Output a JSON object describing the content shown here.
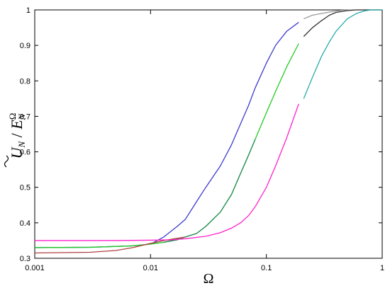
{
  "chart_data": {
    "type": "line",
    "xlabel": "Ω",
    "ylabel_main": "U",
    "ylabel_sub": "N",
    "ylabel_den": "E",
    "ylabel_den_sup": "Ω",
    "ylabel_den_sub": "N",
    "x_scale": "log",
    "xlim": [
      0.001,
      1
    ],
    "ylim": [
      0.3,
      1
    ],
    "x_ticks": [
      0.001,
      0.01,
      0.1,
      1
    ],
    "x_tick_labels": [
      "0.001",
      "0.01",
      "0.1",
      "1"
    ],
    "y_ticks": [
      0.3,
      0.4,
      0.5,
      0.6,
      0.7,
      0.8,
      0.9,
      1
    ],
    "y_tick_labels": [
      "0.3",
      "0.4",
      "0.5",
      "0.6",
      "0.7",
      "0.8",
      "0.9",
      "1"
    ],
    "grid": false,
    "series": [
      {
        "color": "#3b3bcf",
        "x": [
          0.001,
          0.003,
          0.007,
          0.01,
          0.013,
          0.017,
          0.02,
          0.025,
          0.03,
          0.04,
          0.05,
          0.06,
          0.07,
          0.08,
          0.1,
          0.12,
          0.15,
          0.19
        ],
        "y": [
          0.33,
          0.331,
          0.335,
          0.34,
          0.36,
          0.39,
          0.41,
          0.46,
          0.5,
          0.56,
          0.62,
          0.68,
          0.73,
          0.78,
          0.85,
          0.9,
          0.94,
          0.965
        ]
      },
      {
        "color": "#999999",
        "x": [
          0.21,
          0.25,
          0.3,
          0.38,
          0.45,
          0.55,
          0.7,
          1.0
        ],
        "y": [
          0.975,
          0.985,
          0.99,
          0.996,
          0.999,
          1.0,
          1.0,
          1.0
        ]
      },
      {
        "color": "#22cc22",
        "x": [
          0.001,
          0.003,
          0.007,
          0.01,
          0.013,
          0.02,
          0.025,
          0.03,
          0.04,
          0.05,
          0.06,
          0.07,
          0.08,
          0.1,
          0.12,
          0.15,
          0.19
        ],
        "y": [
          0.33,
          0.331,
          0.335,
          0.34,
          0.345,
          0.36,
          0.37,
          0.39,
          0.43,
          0.48,
          0.54,
          0.59,
          0.635,
          0.71,
          0.77,
          0.84,
          0.905
        ]
      },
      {
        "color": "#2a8a5a",
        "x": [
          0.013,
          0.017,
          0.02,
          0.025,
          0.03,
          0.04,
          0.05,
          0.06,
          0.07,
          0.08
        ],
        "y": [
          0.345,
          0.352,
          0.36,
          0.37,
          0.39,
          0.43,
          0.48,
          0.54,
          0.59,
          0.635
        ]
      },
      {
        "color": "#333333",
        "x": [
          0.21,
          0.25,
          0.3,
          0.35,
          0.4,
          0.5,
          0.6,
          0.8,
          1.0
        ],
        "y": [
          0.925,
          0.95,
          0.97,
          0.985,
          0.993,
          0.998,
          1.0,
          1.0,
          1.0
        ]
      },
      {
        "color": "#b04040",
        "x": [
          0.001,
          0.003,
          0.005,
          0.007,
          0.01,
          0.013,
          0.016,
          0.02
        ],
        "y": [
          0.315,
          0.317,
          0.322,
          0.33,
          0.342,
          0.35,
          0.355,
          0.36
        ]
      },
      {
        "color": "#ff22cc",
        "x": [
          0.001,
          0.003,
          0.005,
          0.01,
          0.015,
          0.02,
          0.03,
          0.04,
          0.05,
          0.06,
          0.07,
          0.08,
          0.1,
          0.12,
          0.15,
          0.19
        ],
        "y": [
          0.35,
          0.35,
          0.35,
          0.351,
          0.352,
          0.355,
          0.362,
          0.372,
          0.385,
          0.4,
          0.42,
          0.445,
          0.5,
          0.56,
          0.64,
          0.735
        ]
      },
      {
        "color": "#2aaaaa",
        "x": [
          0.21,
          0.25,
          0.3,
          0.35,
          0.4,
          0.5,
          0.6,
          0.7,
          0.8,
          1.0
        ],
        "y": [
          0.75,
          0.81,
          0.87,
          0.91,
          0.94,
          0.975,
          0.99,
          0.997,
          1.0,
          1.0
        ]
      }
    ]
  }
}
